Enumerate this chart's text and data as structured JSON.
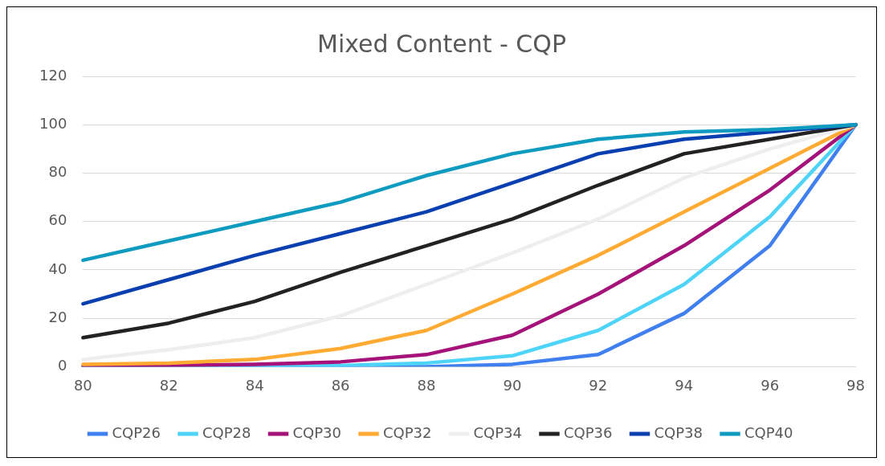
{
  "chart_data": {
    "type": "line",
    "title": "Mixed Content - CQP",
    "categories": [
      "80",
      "82",
      "84",
      "86",
      "88",
      "90",
      "92",
      "94",
      "96",
      "98"
    ],
    "ylim": [
      0,
      120
    ],
    "yticks": [
      0,
      20,
      40,
      60,
      80,
      100,
      120
    ],
    "grid": "y",
    "legend": "bottom",
    "marker": "none",
    "line_style": "solid",
    "series": [
      {
        "name": "CQP26",
        "color": "#3f7fef",
        "values": [
          0,
          0,
          0,
          0,
          0,
          1,
          5,
          22,
          50,
          100
        ]
      },
      {
        "name": "CQP28",
        "color": "#4dd4f8",
        "values": [
          0,
          0,
          0,
          0.5,
          1.5,
          4.5,
          15,
          34,
          62,
          100
        ]
      },
      {
        "name": "CQP30",
        "color": "#a5127a",
        "values": [
          0,
          0.5,
          1,
          2,
          5,
          13,
          30,
          50,
          73,
          100
        ]
      },
      {
        "name": "CQP32",
        "color": "#ffaa33",
        "values": [
          1,
          1.5,
          3,
          7.5,
          15,
          30,
          46,
          64,
          82,
          100
        ]
      },
      {
        "name": "CQP34",
        "color": "#eeeeee",
        "values": [
          3,
          7,
          12,
          21,
          34,
          47,
          61,
          78,
          90,
          100
        ]
      },
      {
        "name": "CQP36",
        "color": "#222222",
        "values": [
          12,
          18,
          27,
          39,
          50,
          61,
          75,
          88,
          94,
          100
        ]
      },
      {
        "name": "CQP38",
        "color": "#0a3fb0",
        "values": [
          26,
          36,
          46,
          55,
          64,
          76,
          88,
          94,
          97,
          100
        ]
      },
      {
        "name": "CQP40",
        "color": "#0f9bbf",
        "values": [
          44,
          52,
          60,
          68,
          79,
          88,
          94,
          97,
          98,
          100
        ]
      }
    ]
  }
}
